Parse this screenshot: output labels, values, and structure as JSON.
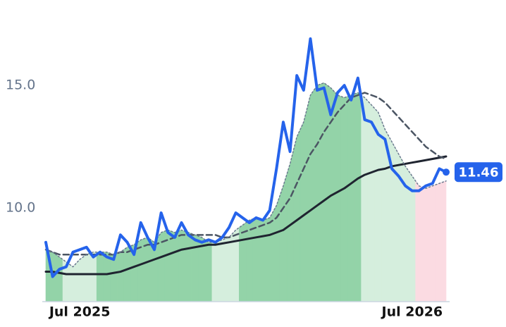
{
  "chart_data": {
    "type": "line",
    "categories": [
      null,
      null,
      null,
      null,
      null,
      "Jul 2025",
      null,
      null,
      null,
      null,
      null,
      null,
      null,
      null,
      null,
      null,
      null,
      null,
      null,
      null,
      null,
      null,
      null,
      null,
      null,
      null,
      null,
      null,
      null,
      null,
      null,
      null,
      null,
      null,
      null,
      null,
      null,
      null,
      null,
      null,
      null,
      null,
      null,
      null,
      null,
      null,
      null,
      null,
      null,
      null,
      null,
      null,
      null,
      null,
      "Jul 2026",
      null,
      null,
      null,
      null,
      null
    ],
    "ylim": [
      6.18,
      18.48
    ],
    "yticks": [
      {
        "value": 10,
        "label": "10.0"
      },
      {
        "value": 15,
        "label": "15.0"
      }
    ],
    "area_series": 1,
    "area_colors": [
      "#93d3a8",
      "#93d3a8",
      "#93d3a8",
      "#d5eedd",
      "#d5eedd",
      "#d5eedd",
      "#d5eedd",
      "#d5eedd",
      "#93d3a8",
      "#93d3a8",
      "#93d3a8",
      "#93d3a8",
      "#93d3a8",
      "#93d3a8",
      "#93d3a8",
      "#93d3a8",
      "#93d3a8",
      "#93d3a8",
      "#93d3a8",
      "#93d3a8",
      "#93d3a8",
      "#93d3a8",
      "#93d3a8",
      "#93d3a8",
      "#93d3a8",
      "#d5eedd",
      "#d5eedd",
      "#d5eedd",
      "#d5eedd",
      "#93d3a8",
      "#93d3a8",
      "#93d3a8",
      "#93d3a8",
      "#93d3a8",
      "#93d3a8",
      "#93d3a8",
      "#93d3a8",
      "#93d3a8",
      "#93d3a8",
      "#93d3a8",
      "#93d3a8",
      "#93d3a8",
      "#93d3a8",
      "#93d3a8",
      "#93d3a8",
      "#93d3a8",
      "#93d3a8",
      "#d5eedd",
      "#d5eedd",
      "#d5eedd",
      "#d5eedd",
      "#d5eedd",
      "#d5eedd",
      "#d5eedd",
      "#d5eedd",
      "#fbdbe2",
      "#fbdbe2",
      "#fbdbe2",
      "#fbdbe2",
      "#fbdbe2"
    ],
    "series": [
      {
        "color": "#2563eb",
        "width": 4,
        "dash": "none",
        "values": [
          8.6,
          7.2,
          7.5,
          7.6,
          8.2,
          8.3,
          8.4,
          8.0,
          8.2,
          8.0,
          7.9,
          8.9,
          8.6,
          8.1,
          9.4,
          8.8,
          8.3,
          9.8,
          9.0,
          8.8,
          9.4,
          8.9,
          8.7,
          8.6,
          8.7,
          8.6,
          8.8,
          9.2,
          9.8,
          9.6,
          9.4,
          9.6,
          9.5,
          9.9,
          11.6,
          13.5,
          12.3,
          15.4,
          14.8,
          16.9,
          14.8,
          14.9,
          13.8,
          14.7,
          15.0,
          14.4,
          15.3,
          13.6,
          13.5,
          13.0,
          12.8,
          11.6,
          11.3,
          10.9,
          10.7,
          10.7,
          10.9,
          11.0,
          11.6,
          11.46
        ]
      },
      {
        "color": "#6b7a8f",
        "width": 1.5,
        "dash": "2 3",
        "values": [
          8.3,
          8.2,
          8.0,
          7.8,
          7.6,
          7.9,
          8.1,
          8.2,
          8.2,
          8.2,
          8.1,
          8.2,
          8.4,
          8.5,
          8.7,
          8.8,
          8.6,
          9.0,
          9.1,
          9.0,
          9.1,
          9.0,
          8.9,
          8.8,
          8.6,
          8.6,
          8.7,
          8.8,
          9.1,
          9.3,
          9.5,
          9.6,
          9.5,
          9.6,
          10.1,
          10.9,
          11.8,
          12.9,
          13.5,
          14.6,
          15.0,
          15.1,
          14.9,
          14.6,
          14.5,
          14.6,
          14.7,
          14.5,
          14.2,
          13.9,
          13.2,
          12.7,
          12.2,
          11.7,
          11.3,
          10.9,
          10.8,
          10.9,
          11.0,
          11.1
        ]
      },
      {
        "color": "#4b5563",
        "width": 2.5,
        "dash": "8 5",
        "values": [
          8.3,
          8.2,
          8.1,
          8.1,
          8.1,
          8.1,
          8.1,
          8.1,
          8.1,
          8.1,
          8.1,
          8.2,
          8.2,
          8.3,
          8.4,
          8.5,
          8.5,
          8.6,
          8.7,
          8.8,
          8.9,
          8.9,
          8.9,
          8.9,
          8.9,
          8.9,
          8.8,
          8.8,
          8.9,
          9.0,
          9.1,
          9.2,
          9.3,
          9.4,
          9.6,
          10.0,
          10.4,
          11.0,
          11.6,
          12.2,
          12.6,
          13.1,
          13.5,
          13.9,
          14.2,
          14.5,
          14.6,
          14.7,
          14.6,
          14.5,
          14.3,
          14.0,
          13.7,
          13.4,
          13.1,
          12.8,
          12.5,
          12.3,
          12.1,
          12.0
        ]
      },
      {
        "color": "#1f2430",
        "width": 3,
        "dash": "none",
        "values": [
          7.4,
          7.4,
          7.35,
          7.3,
          7.3,
          7.3,
          7.3,
          7.3,
          7.3,
          7.3,
          7.35,
          7.4,
          7.5,
          7.6,
          7.7,
          7.8,
          7.9,
          8.0,
          8.1,
          8.2,
          8.3,
          8.35,
          8.4,
          8.45,
          8.5,
          8.5,
          8.55,
          8.6,
          8.65,
          8.7,
          8.75,
          8.8,
          8.85,
          8.9,
          9.0,
          9.1,
          9.3,
          9.5,
          9.7,
          9.9,
          10.1,
          10.3,
          10.5,
          10.65,
          10.8,
          11.0,
          11.2,
          11.35,
          11.45,
          11.55,
          11.6,
          11.7,
          11.75,
          11.8,
          11.85,
          11.9,
          11.95,
          12.0,
          12.05,
          12.1
        ]
      }
    ]
  }
}
